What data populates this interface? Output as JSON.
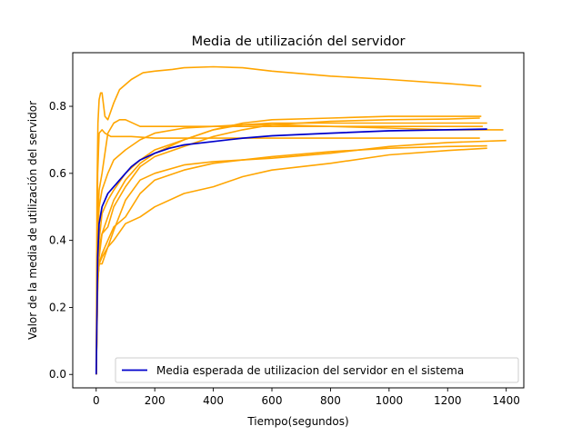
{
  "chart_data": {
    "type": "line",
    "title": "Media de utilización del servidor",
    "xlabel": "Tiempo(segundos)",
    "ylabel": "Valor de la media de utilización del servidor",
    "xlim": [
      -80,
      1460
    ],
    "ylim": [
      -0.04,
      0.96
    ],
    "xticks": [
      0,
      200,
      400,
      600,
      800,
      1000,
      1200,
      1400
    ],
    "yticks": [
      0.0,
      0.2,
      0.4,
      0.6,
      0.8
    ],
    "xtick_labels": [
      "0",
      "200",
      "400",
      "600",
      "800",
      "1000",
      "1200",
      "1400"
    ],
    "ytick_labels": [
      "0.0",
      "0.2",
      "0.4",
      "0.6",
      "0.8"
    ],
    "grid": false,
    "legend_position": "lower-right",
    "legend_label": "Media esperada de utilizacion del servidor en el sistema",
    "colors": {
      "runs": "#FFA500",
      "expected": "#0000CC"
    },
    "runs": [
      {
        "x": [
          0,
          3,
          6,
          10,
          15,
          20,
          30,
          40,
          60,
          80,
          120,
          160,
          200,
          260,
          300,
          400,
          500,
          600,
          800,
          1000,
          1200,
          1315
        ],
        "y": [
          0.0,
          0.55,
          0.75,
          0.82,
          0.84,
          0.84,
          0.77,
          0.76,
          0.81,
          0.85,
          0.88,
          0.9,
          0.905,
          0.91,
          0.915,
          0.918,
          0.915,
          0.905,
          0.89,
          0.88,
          0.868,
          0.86
        ]
      },
      {
        "x": [
          0,
          5,
          10,
          20,
          30,
          50,
          80,
          120,
          200,
          300,
          400,
          500,
          600,
          800,
          1000,
          1200,
          1310
        ],
        "y": [
          0.0,
          0.6,
          0.72,
          0.73,
          0.72,
          0.71,
          0.71,
          0.71,
          0.705,
          0.705,
          0.705,
          0.705,
          0.705,
          0.705,
          0.705,
          0.705,
          0.705
        ]
      },
      {
        "x": [
          0,
          5,
          10,
          20,
          40,
          60,
          80,
          100,
          150,
          200,
          300,
          400,
          600,
          800,
          1000,
          1200,
          1320
        ],
        "y": [
          0.0,
          0.45,
          0.55,
          0.6,
          0.72,
          0.75,
          0.76,
          0.76,
          0.74,
          0.74,
          0.74,
          0.74,
          0.74,
          0.74,
          0.74,
          0.74,
          0.74
        ]
      },
      {
        "x": [
          0,
          5,
          10,
          20,
          40,
          60,
          100,
          150,
          200,
          300,
          400,
          500,
          600,
          800,
          1000,
          1200,
          1390
        ],
        "y": [
          0.0,
          0.42,
          0.5,
          0.55,
          0.6,
          0.64,
          0.67,
          0.7,
          0.72,
          0.735,
          0.74,
          0.745,
          0.745,
          0.74,
          0.735,
          0.73,
          0.73
        ]
      },
      {
        "x": [
          0,
          5,
          10,
          20,
          40,
          60,
          100,
          150,
          200,
          300,
          400,
          500,
          600,
          800,
          1000,
          1200,
          1335
        ],
        "y": [
          0.0,
          0.3,
          0.4,
          0.48,
          0.52,
          0.55,
          0.6,
          0.64,
          0.67,
          0.7,
          0.73,
          0.745,
          0.75,
          0.75,
          0.75,
          0.75,
          0.75
        ]
      },
      {
        "x": [
          0,
          5,
          10,
          20,
          40,
          60,
          100,
          150,
          200,
          300,
          400,
          500,
          600,
          800,
          1000,
          1200,
          1315
        ],
        "y": [
          0.0,
          0.25,
          0.35,
          0.42,
          0.47,
          0.52,
          0.58,
          0.63,
          0.66,
          0.7,
          0.73,
          0.75,
          0.76,
          0.765,
          0.77,
          0.77,
          0.77
        ]
      },
      {
        "x": [
          0,
          5,
          10,
          20,
          40,
          60,
          100,
          150,
          200,
          300,
          400,
          500,
          600,
          800,
          1000,
          1200,
          1310
        ],
        "y": [
          0.0,
          0.3,
          0.38,
          0.42,
          0.44,
          0.5,
          0.56,
          0.62,
          0.65,
          0.68,
          0.71,
          0.73,
          0.745,
          0.755,
          0.76,
          0.762,
          0.765
        ]
      },
      {
        "x": [
          0,
          5,
          10,
          20,
          40,
          60,
          100,
          150,
          200,
          300,
          400,
          500,
          600,
          800,
          1000,
          1200,
          1400
        ],
        "y": [
          0.0,
          0.28,
          0.33,
          0.33,
          0.38,
          0.43,
          0.52,
          0.58,
          0.6,
          0.625,
          0.635,
          0.64,
          0.645,
          0.66,
          0.68,
          0.692,
          0.698
        ]
      },
      {
        "x": [
          0,
          5,
          10,
          20,
          40,
          60,
          100,
          150,
          200,
          300,
          400,
          500,
          600,
          800,
          1000,
          1200,
          1335
        ],
        "y": [
          0.0,
          0.28,
          0.33,
          0.36,
          0.4,
          0.44,
          0.47,
          0.54,
          0.58,
          0.61,
          0.63,
          0.64,
          0.65,
          0.665,
          0.675,
          0.68,
          0.682
        ]
      },
      {
        "x": [
          0,
          5,
          10,
          20,
          40,
          60,
          100,
          150,
          200,
          300,
          400,
          500,
          600,
          800,
          1000,
          1200,
          1335
        ],
        "y": [
          0.0,
          0.28,
          0.33,
          0.35,
          0.38,
          0.4,
          0.45,
          0.47,
          0.5,
          0.54,
          0.56,
          0.59,
          0.61,
          0.63,
          0.655,
          0.668,
          0.675
        ]
      }
    ],
    "expected": {
      "x": [
        0,
        5,
        10,
        20,
        40,
        60,
        80,
        100,
        120,
        150,
        200,
        250,
        300,
        400,
        500,
        600,
        800,
        1000,
        1200,
        1335
      ],
      "y": [
        0.0,
        0.35,
        0.45,
        0.5,
        0.54,
        0.56,
        0.58,
        0.6,
        0.62,
        0.64,
        0.66,
        0.675,
        0.685,
        0.695,
        0.705,
        0.712,
        0.72,
        0.727,
        0.73,
        0.732
      ]
    }
  }
}
